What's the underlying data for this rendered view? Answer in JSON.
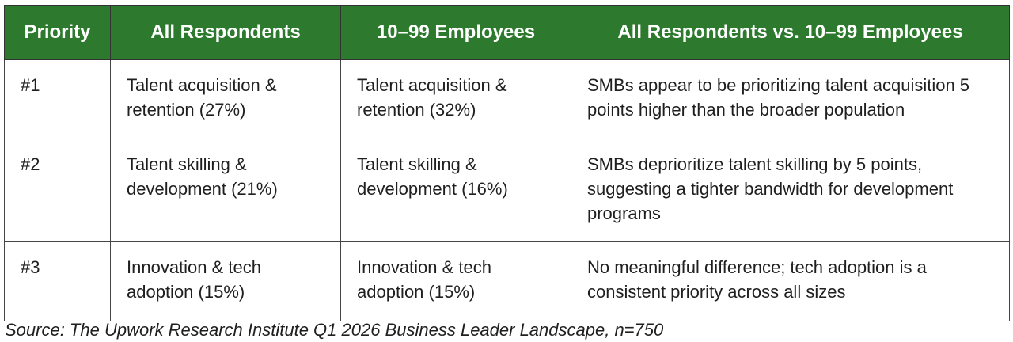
{
  "table": {
    "headers": [
      "Priority",
      "All Respondents",
      "10–99 Employees",
      "All Respondents vs. 10–99 Employees"
    ],
    "rows": [
      {
        "priority": "#1",
        "all_respondents": "Talent acquisition & retention (27%)",
        "employees_10_99": "Talent acquisition & retention (32%)",
        "comparison": "SMBs appear to be prioritizing talent acquisition 5 points higher than the broader population"
      },
      {
        "priority": "#2",
        "all_respondents": "Talent skilling & development (21%)",
        "employees_10_99": "Talent skilling & development (16%)",
        "comparison": "SMBs deprioritize talent skilling by 5 points, suggesting a tighter bandwidth for development programs"
      },
      {
        "priority": "#3",
        "all_respondents": "Innovation & tech adoption (15%)",
        "employees_10_99": "Innovation & tech adoption (15%)",
        "comparison": "No meaningful difference; tech adoption is a consistent priority across all sizes"
      }
    ]
  },
  "source": "Source: The Upwork Research Institute Q1 2026 Business Leader Landscape, n=750",
  "colors": {
    "header_background": "#2d7a2e",
    "header_text": "#ffffff",
    "border": "#444444"
  }
}
